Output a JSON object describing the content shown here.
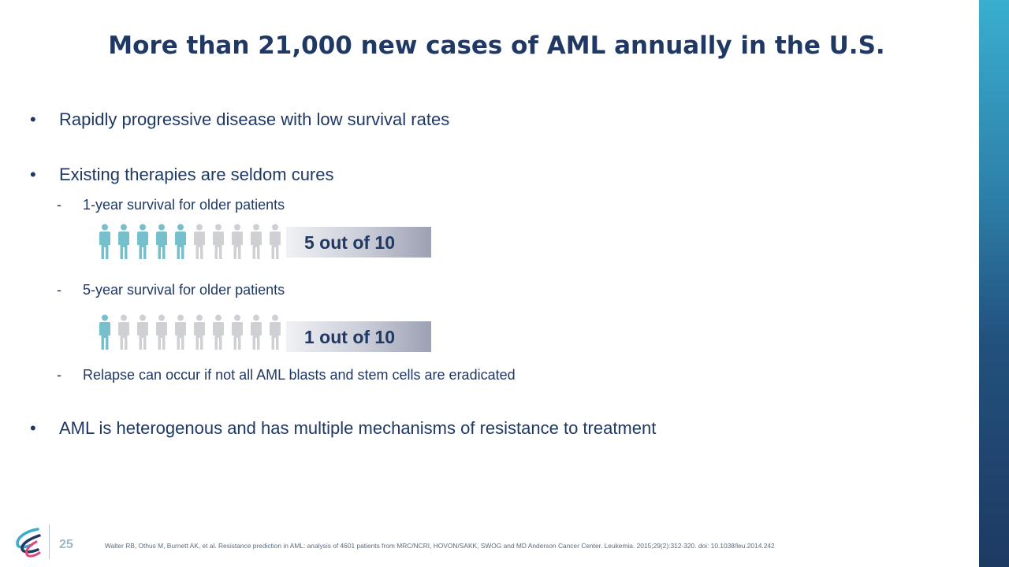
{
  "title": "More than 21,000 new cases of AML annually in the U.S.",
  "bullet_symbol": "•",
  "dash_symbol": "-",
  "bullets": [
    "Rapidly progressive disease with low survival rates",
    "Existing therapies are seldom cures",
    "AML is heterogenous and has multiple mechanisms of resistance to treatment"
  ],
  "sub_bullets": [
    "1-year survival for older patients",
    "5-year survival for older patients",
    "Relapse can occur if not all AML blasts and stem cells are eradicated"
  ],
  "survival_graphics": [
    {
      "label": "5 out of 10",
      "highlighted": 5,
      "total": 10
    },
    {
      "label": "1 out of 10",
      "highlighted": 1,
      "total": 10
    }
  ],
  "colors": {
    "highlight": "#76bfcc",
    "muted": "#cfd0d3",
    "text": "#1f3864"
  },
  "footer": {
    "page_number": "25",
    "citation": "Walter RB, Othus M, Burnett AK, et al. Resistance prediction in AML: analysis of 4601 patients from MRC/NCRI, HOVON/SAKK, SWOG and MD Anderson Cancer Center. Leukemia. 2015;29(2):312-320. doi: 10.1038/leu.2014.242"
  }
}
